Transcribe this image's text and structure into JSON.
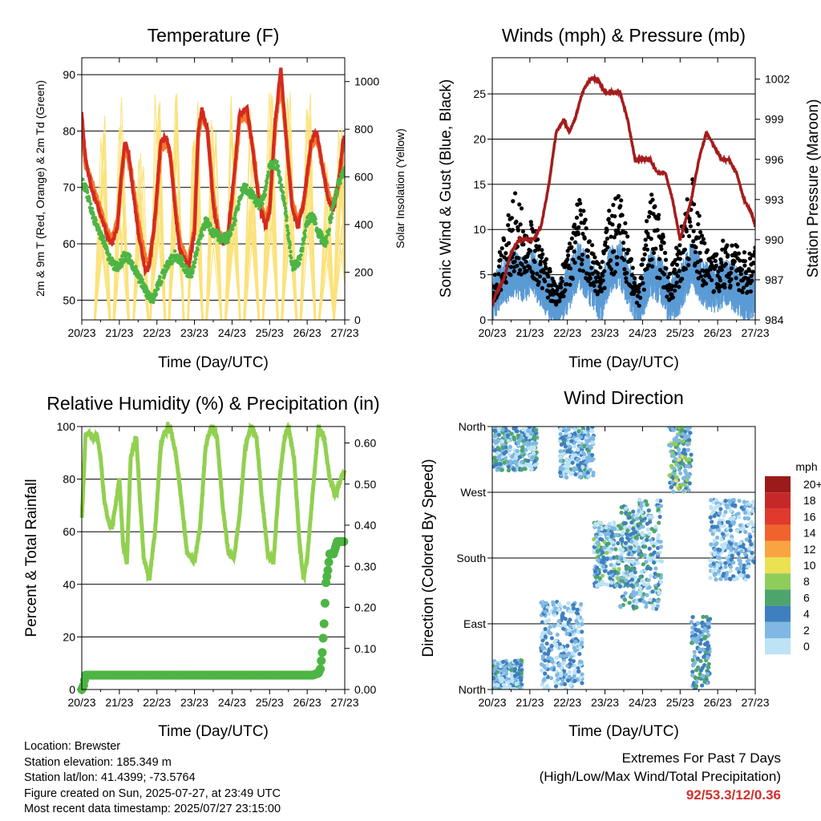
{
  "panels": {
    "temperature": {
      "title": "Temperature (F)",
      "ylabel_left": "2m & 9m T (Red, Orange) & 2m Td (Green)",
      "ylabel_right": "Solar Insolation (Yellow)",
      "xlabel": "Time (Day/UTC)"
    },
    "wind": {
      "title": "Winds (mph) & Pressure (mb)",
      "ylabel_left": "Sonic Wind & Gust (Blue, Black)",
      "ylabel_right": "Station Pressure (Maroon)",
      "xlabel": "Time (Day/UTC)"
    },
    "humidity": {
      "title": "Relative Humidity (%) & Precipitation (in)",
      "ylabel_left": "Percent & Total Rainfall",
      "xlabel": "Time (Day/UTC)"
    },
    "direction": {
      "title": "Wind Direction",
      "ylabel_left": "Direction (Colored By Speed)",
      "xlabel": "Time (Day/UTC)",
      "legend_title": "mph"
    }
  },
  "info": {
    "location": "Location: Brewster",
    "elevation": "Station elevation: 185.349 m",
    "latlon": "Station lat/lon: 41.4399; -73.5764",
    "created": "Figure created on Sun, 2025-07-27, at 23:49 UTC",
    "recent": "Most recent data timestamp: 2025/07/27 23:15:00"
  },
  "extremes": {
    "line1": "Extremes For Past 7 Days",
    "line2": "(High/Low/Max Wind/Total Precipitation)",
    "values": "92/53.3/12/0.36"
  },
  "colors": {
    "temp2m": "#d42a20",
    "temp9m": "#f27a2a",
    "dewpoint": "#4db544",
    "solar": "#fbe27a",
    "gust": "#000000",
    "wind": "#5b9bd5",
    "pressure": "#a51c1c",
    "rh": "#92d050",
    "precip": "#4db544"
  },
  "chart_data": [
    {
      "id": "temperature",
      "type": "line",
      "xticks": [
        "20/23",
        "21/23",
        "22/23",
        "23/23",
        "24/23",
        "25/23",
        "26/23",
        "27/23"
      ],
      "xlim": [
        0,
        7
      ],
      "ylim": [
        46.5,
        93
      ],
      "yticks": [
        50,
        60,
        70,
        80,
        90
      ],
      "y2lim": [
        0,
        1100
      ],
      "y2ticks": [
        0,
        200,
        400,
        600,
        800,
        1000
      ],
      "grid": true,
      "series": [
        {
          "x": [
            0,
            0.1,
            0.25,
            0.4,
            0.55,
            0.7,
            0.8,
            0.95,
            1.05,
            1.15,
            1.25,
            1.35,
            1.5,
            1.7,
            1.8,
            1.95,
            2.1,
            2.25,
            2.35,
            2.5,
            2.6,
            2.75,
            2.85,
            3.0,
            3.1,
            3.2,
            3.35,
            3.5,
            3.65,
            3.8,
            3.9,
            4.05,
            4.2,
            4.4,
            4.55,
            4.7,
            4.8,
            4.9,
            5.0,
            5.15,
            5.3,
            5.45,
            5.6,
            5.75,
            5.9,
            6.1,
            6.25,
            6.4,
            6.55,
            6.7,
            6.85,
            6.95,
            7.0
          ],
          "values": [
            83,
            75,
            70,
            67,
            64,
            61,
            60,
            63,
            72,
            78,
            76,
            70,
            62,
            55,
            56,
            65,
            78,
            79,
            76,
            65,
            59,
            57,
            56,
            62,
            80,
            84,
            80,
            67,
            61,
            60,
            62,
            72,
            83,
            84,
            77,
            68,
            65,
            63,
            66,
            82,
            91,
            78,
            66,
            63,
            67,
            78,
            80,
            74,
            68,
            66,
            72,
            78,
            79
          ]
        },
        {
          "x": [
            0,
            0.1,
            0.25,
            0.4,
            0.55,
            0.7,
            0.8,
            0.95,
            1.05,
            1.15,
            1.25,
            1.35,
            1.5,
            1.7,
            1.8,
            1.95,
            2.1,
            2.25,
            2.35,
            2.5,
            2.6,
            2.75,
            2.85,
            3.0,
            3.1,
            3.2,
            3.35,
            3.5,
            3.65,
            3.8,
            3.9,
            4.05,
            4.2,
            4.4,
            4.55,
            4.7,
            4.8,
            4.9,
            5.0,
            5.15,
            5.3,
            5.45,
            5.6,
            5.75,
            5.9,
            6.1,
            6.25,
            6.4,
            6.55,
            6.7,
            6.85,
            6.95,
            7.0
          ],
          "values": [
            82,
            74,
            71,
            68,
            65,
            62,
            61,
            64,
            71,
            77,
            75,
            71,
            64,
            57,
            57,
            64,
            77,
            78,
            76,
            66,
            61,
            58,
            57,
            63,
            79,
            83,
            80,
            68,
            62,
            61,
            62,
            71,
            82,
            83,
            77,
            69,
            66,
            64,
            66,
            81,
            89,
            78,
            67,
            64,
            67,
            77,
            79,
            74,
            69,
            67,
            71,
            77,
            78
          ]
        },
        {
          "x": [
            0,
            0.1,
            0.25,
            0.4,
            0.55,
            0.7,
            0.85,
            1.0,
            1.15,
            1.3,
            1.45,
            1.6,
            1.75,
            1.9,
            2.05,
            2.2,
            2.35,
            2.5,
            2.65,
            2.8,
            2.95,
            3.1,
            3.3,
            3.5,
            3.7,
            3.9,
            4.1,
            4.3,
            4.5,
            4.7,
            4.85,
            5.0,
            5.2,
            5.4,
            5.6,
            5.8,
            6.0,
            6.15,
            6.3,
            6.5,
            6.7,
            6.85,
            7.0
          ],
          "values": [
            71,
            70,
            66,
            63,
            61,
            58,
            56,
            56,
            58,
            57,
            55,
            53,
            51,
            50,
            53,
            55,
            57,
            58,
            57,
            55,
            55,
            60,
            64,
            62,
            61,
            61,
            65,
            70,
            69,
            67,
            68,
            74,
            74,
            67,
            56,
            57,
            64,
            65,
            62,
            60,
            67,
            71,
            73
          ]
        },
        {
          "spikes_x": [
            0.55,
            1.05,
            1.58,
            2.02,
            2.52,
            3.02,
            3.52,
            4.02,
            4.52,
            5.02,
            5.52,
            6.02,
            6.52,
            6.9
          ],
          "spikes_peak": [
            880,
            1000,
            870,
            1010,
            1070,
            920,
            850,
            980,
            900,
            1010,
            980,
            960,
            700,
            830
          ]
        }
      ]
    },
    {
      "id": "wind",
      "type": "line",
      "xticks": [
        "20/23",
        "21/23",
        "22/23",
        "23/23",
        "24/23",
        "25/23",
        "26/23",
        "27/23"
      ],
      "xlim": [
        0,
        7
      ],
      "ylim": [
        0,
        29
      ],
      "yticks": [
        0,
        5,
        10,
        15,
        20,
        25
      ],
      "y2lim": [
        984,
        1003.6
      ],
      "y2ticks": [
        984,
        987,
        990,
        993,
        996,
        999,
        1002
      ],
      "grid": true,
      "series": [
        {
          "name": "pressure",
          "x": [
            0,
            0.1,
            0.3,
            0.5,
            0.7,
            0.9,
            1.1,
            1.3,
            1.5,
            1.7,
            1.9,
            2.05,
            2.2,
            2.4,
            2.6,
            2.8,
            3.0,
            3.2,
            3.4,
            3.6,
            3.8,
            4.0,
            4.2,
            4.4,
            4.6,
            4.8,
            5.0,
            5.1,
            5.3,
            5.5,
            5.7,
            5.9,
            6.1,
            6.3,
            6.5,
            6.7,
            6.9,
            7.0
          ],
          "values": [
            985,
            986,
            987,
            989,
            990,
            990,
            990,
            991,
            994,
            998,
            999,
            998,
            999,
            1001,
            1002,
            1002,
            1001,
            1001,
            1001,
            999,
            996,
            996,
            996,
            995,
            995,
            993,
            990,
            991,
            993,
            996,
            998,
            997,
            996,
            996,
            995,
            993,
            992,
            991
          ]
        },
        {
          "name": "wind_band",
          "x": [
            0,
            0.3,
            0.6,
            0.9,
            1.1,
            1.4,
            1.7,
            2.0,
            2.3,
            2.6,
            2.9,
            3.1,
            3.4,
            3.7,
            3.9,
            4.2,
            4.5,
            4.7,
            5.0,
            5.3,
            5.6,
            5.9,
            6.2,
            6.5,
            6.8,
            7.0
          ],
          "values": [
            2,
            4,
            5,
            4,
            5,
            3,
            1,
            3,
            6,
            4,
            2,
            5,
            6,
            3,
            1,
            5,
            4,
            2,
            3,
            6,
            4,
            3,
            4,
            3,
            2,
            3
          ]
        },
        {
          "name": "gust_band",
          "x": [
            0,
            0.3,
            0.6,
            0.9,
            1.1,
            1.4,
            1.7,
            2.0,
            2.3,
            2.6,
            2.9,
            3.1,
            3.4,
            3.7,
            3.9,
            4.2,
            4.5,
            4.7,
            5.0,
            5.3,
            5.6,
            5.9,
            6.2,
            6.5,
            6.8,
            7.0
          ],
          "values": [
            3,
            8,
            12,
            10,
            9,
            6,
            3,
            7,
            12,
            8,
            5,
            10,
            12,
            6,
            3,
            12,
            9,
            4,
            8,
            14,
            8,
            6,
            8,
            7,
            6,
            7
          ]
        }
      ]
    },
    {
      "id": "humidity",
      "type": "line",
      "xticks": [
        "20/23",
        "21/23",
        "22/23",
        "23/23",
        "24/23",
        "25/23",
        "26/23",
        "27/23"
      ],
      "xlim": [
        0,
        7
      ],
      "ylim": [
        0,
        100
      ],
      "yticks": [
        0,
        20,
        40,
        60,
        80,
        100
      ],
      "y2lim": [
        0,
        0.64
      ],
      "y2ticks": [
        0.0,
        0.1,
        0.2,
        0.3,
        0.4,
        0.5,
        0.6
      ],
      "grid": true,
      "series": [
        {
          "name": "rh",
          "x": [
            0,
            0.05,
            0.1,
            0.2,
            0.3,
            0.4,
            0.5,
            0.6,
            0.7,
            0.8,
            0.9,
            1.0,
            1.1,
            1.2,
            1.3,
            1.45,
            1.55,
            1.65,
            1.8,
            1.95,
            2.1,
            2.2,
            2.35,
            2.5,
            2.65,
            2.8,
            3.0,
            3.15,
            3.3,
            3.45,
            3.6,
            3.75,
            3.9,
            4.05,
            4.2,
            4.35,
            4.5,
            4.65,
            4.8,
            4.95,
            5.1,
            5.25,
            5.4,
            5.5,
            5.65,
            5.8,
            5.9,
            6.0,
            6.15,
            6.3,
            6.45,
            6.6,
            6.75,
            6.9,
            7.0
          ],
          "values": [
            65,
            80,
            97,
            98,
            96,
            97,
            88,
            72,
            64,
            62,
            70,
            80,
            55,
            48,
            88,
            96,
            72,
            50,
            42,
            60,
            92,
            98,
            100,
            90,
            72,
            52,
            48,
            62,
            93,
            100,
            96,
            70,
            52,
            50,
            66,
            92,
            100,
            96,
            72,
            52,
            48,
            78,
            96,
            100,
            88,
            55,
            42,
            50,
            75,
            100,
            96,
            80,
            74,
            80,
            83
          ]
        },
        {
          "name": "precip",
          "x": [
            0,
            0.05,
            0.1,
            6.0,
            6.15,
            6.3,
            6.35,
            6.4,
            6.45,
            6.5,
            6.55,
            6.6,
            6.7,
            6.8,
            7.0
          ],
          "values": [
            0,
            0.01,
            0.035,
            0.035,
            0.035,
            0.04,
            0.05,
            0.09,
            0.16,
            0.26,
            0.29,
            0.33,
            0.33,
            0.36,
            0.36
          ]
        }
      ]
    },
    {
      "id": "direction",
      "type": "scatter",
      "xticks": [
        "20/23",
        "21/23",
        "22/23",
        "23/23",
        "24/23",
        "25/23",
        "26/23",
        "27/23"
      ],
      "xlim": [
        0,
        7
      ],
      "ylim": [
        0,
        360
      ],
      "yticks": [
        "North",
        "East",
        "South",
        "West",
        "North"
      ],
      "ytick_values": [
        0,
        90,
        180,
        270,
        360
      ],
      "grid": true,
      "legend": {
        "labels": [
          "20+",
          "18",
          "16",
          "14",
          "12",
          "10",
          "8",
          "6",
          "4",
          "2",
          "0"
        ],
        "colors": [
          "#9b1b1b",
          "#c62828",
          "#e0392e",
          "#f0632c",
          "#f9a441",
          "#ece053",
          "#8fcd5b",
          "#4da56b",
          "#3f7fbf",
          "#7fb8e3",
          "#bde3f5"
        ]
      },
      "series": [
        {
          "name": "night_N",
          "x_range": [
            0,
            1.2
          ],
          "dir_range": [
            300,
            360
          ],
          "speed_range": [
            1,
            8
          ]
        },
        {
          "name": "night_N_low",
          "x_range": [
            0,
            0.8
          ],
          "dir_range": [
            0,
            40
          ],
          "speed_range": [
            1,
            7
          ]
        },
        {
          "name": "day_21",
          "x_range": [
            1.3,
            2.4
          ],
          "dir_range": [
            0,
            120
          ],
          "speed_range": [
            1,
            6
          ]
        },
        {
          "name": "day_22",
          "x_range": [
            1.8,
            2.7
          ],
          "dir_range": [
            290,
            360
          ],
          "speed_range": [
            1,
            7
          ]
        },
        {
          "name": "south_23",
          "x_range": [
            2.7,
            3.8
          ],
          "dir_range": [
            140,
            230
          ],
          "speed_range": [
            1,
            9
          ]
        },
        {
          "name": "south_24",
          "x_range": [
            3.4,
            4.5
          ],
          "dir_range": [
            110,
            260
          ],
          "speed_range": [
            1,
            8
          ]
        },
        {
          "name": "north_25",
          "x_range": [
            4.7,
            5.3
          ],
          "dir_range": [
            270,
            360
          ],
          "speed_range": [
            2,
            11
          ]
        },
        {
          "name": "east_26",
          "x_range": [
            5.3,
            5.8
          ],
          "dir_range": [
            0,
            100
          ],
          "speed_range": [
            2,
            8
          ]
        },
        {
          "name": "south_26",
          "x_range": [
            5.8,
            7.0
          ],
          "dir_range": [
            150,
            260
          ],
          "speed_range": [
            1,
            6
          ]
        }
      ]
    }
  ]
}
